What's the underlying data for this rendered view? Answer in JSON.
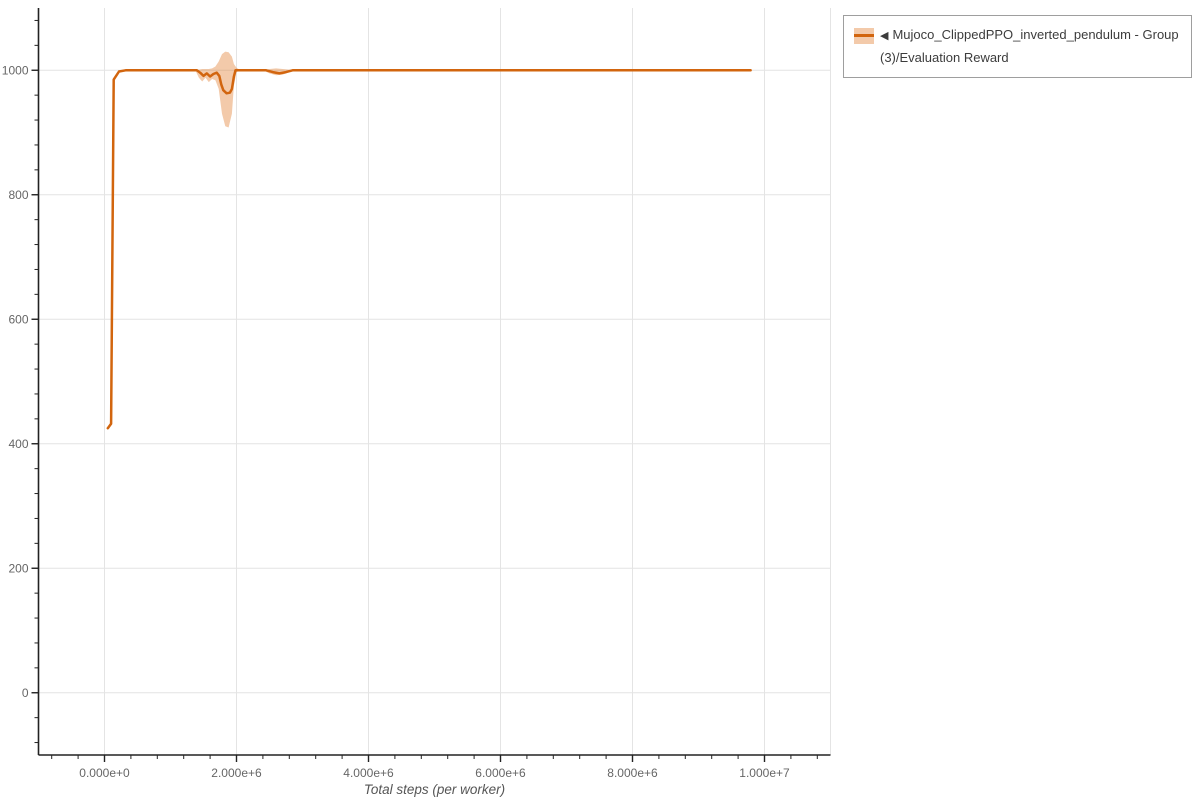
{
  "legend": {
    "items": [
      {
        "marker": "◀",
        "label": "Mujoco_ClippedPPO_inverted_pendulum - Group(3)/Evaluation Reward"
      }
    ]
  },
  "chart_data": {
    "type": "line",
    "title": "",
    "xlabel": "Total steps (per worker)",
    "ylabel": "",
    "legend_position": "top-right-outside",
    "grid": true,
    "x_axis": {
      "lim": [
        -1000000,
        11000000
      ],
      "major_tick_values": [
        0,
        2000000,
        4000000,
        6000000,
        8000000,
        10000000
      ],
      "major_tick_labels": [
        "0.000e+0",
        "2.000e+6",
        "4.000e+6",
        "6.000e+6",
        "8.000e+6",
        "1.000e+7"
      ],
      "minor_step": 400000,
      "gridline_values": [
        0,
        2000000,
        4000000,
        6000000,
        8000000,
        10000000,
        11000000
      ]
    },
    "y_axis": {
      "lim": [
        -100,
        1100
      ],
      "major_tick_values": [
        0,
        200,
        400,
        600,
        800,
        1000
      ],
      "major_tick_labels": [
        "0",
        "200",
        "400",
        "600",
        "800",
        "1000"
      ],
      "minor_step": 40,
      "gridline_values": [
        0,
        200,
        400,
        600,
        800,
        1000
      ]
    },
    "series": [
      {
        "name": "Mujoco_ClippedPPO_inverted_pendulum - Group(3)/Evaluation Reward",
        "color": "#d2650e",
        "band_color": "rgba(224, 122, 42, 0.40)",
        "line_width": 2.5,
        "points": [
          [
            50000,
            425
          ],
          [
            100000,
            432
          ],
          [
            140000,
            985
          ],
          [
            220000,
            998
          ],
          [
            320000,
            1000
          ],
          [
            1400000,
            1000
          ],
          [
            1450000,
            996
          ],
          [
            1500000,
            991
          ],
          [
            1550000,
            995
          ],
          [
            1600000,
            990
          ],
          [
            1650000,
            994
          ],
          [
            1700000,
            996
          ],
          [
            1740000,
            991
          ],
          [
            1770000,
            977
          ],
          [
            1800000,
            968
          ],
          [
            1850000,
            963
          ],
          [
            1900000,
            964
          ],
          [
            1930000,
            970
          ],
          [
            1960000,
            990
          ],
          [
            1985000,
            1000
          ],
          [
            2450000,
            1000
          ],
          [
            2550000,
            997
          ],
          [
            2650000,
            995
          ],
          [
            2750000,
            997
          ],
          [
            2850000,
            1000
          ],
          [
            9790000,
            1000
          ]
        ],
        "band": [
          [
            1380000,
            999,
            1001
          ],
          [
            1430000,
            988,
            1001
          ],
          [
            1480000,
            982,
            1002
          ],
          [
            1530000,
            988,
            1002
          ],
          [
            1580000,
            981,
            1002
          ],
          [
            1630000,
            986,
            1003
          ],
          [
            1680000,
            984,
            1006
          ],
          [
            1730000,
            970,
            1014
          ],
          [
            1780000,
            930,
            1026
          ],
          [
            1830000,
            910,
            1030
          ],
          [
            1880000,
            908,
            1029
          ],
          [
            1930000,
            930,
            1022
          ],
          [
            1960000,
            975,
            1010
          ],
          [
            2000000,
            997,
            1004
          ],
          [
            2060000,
            1000,
            1000
          ],
          [
            2400000,
            1000,
            1000
          ],
          [
            2500000,
            995,
            1002
          ],
          [
            2600000,
            992,
            1003
          ],
          [
            2700000,
            993,
            1002
          ],
          [
            2800000,
            997,
            1001
          ],
          [
            2900000,
            1000,
            1000
          ]
        ]
      }
    ],
    "style": {
      "background": "#ffffff",
      "grid_color": "#e4e4e4",
      "axis_color": "#222222",
      "tick_label_color": "#666666",
      "xlabel_color": "#555555"
    }
  }
}
